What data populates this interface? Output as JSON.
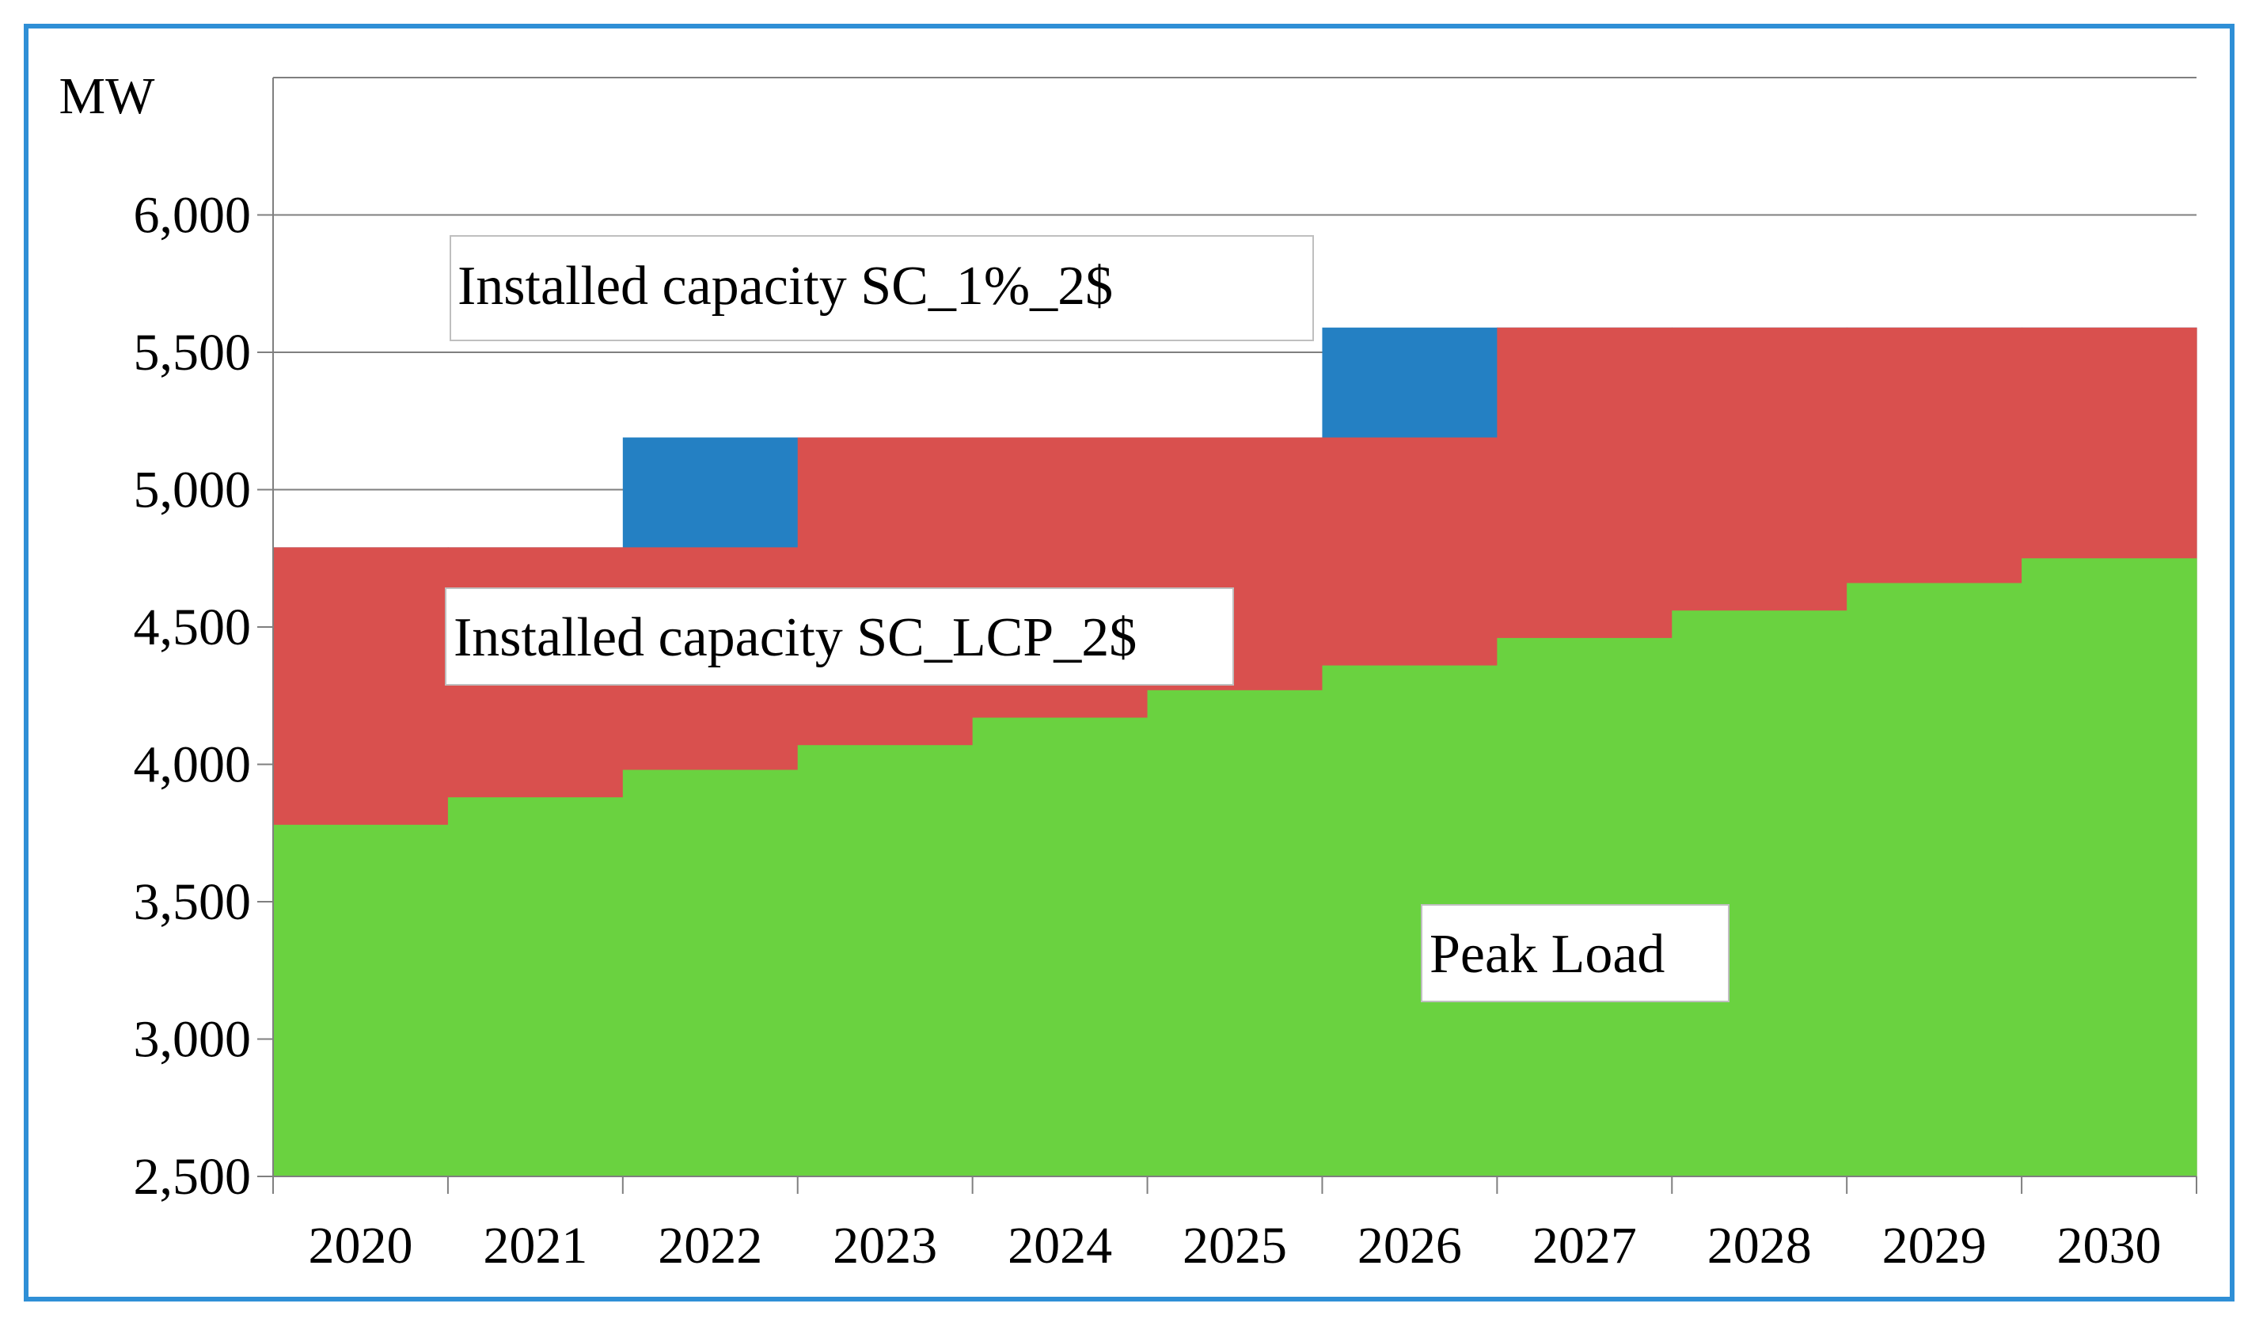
{
  "chart_data": {
    "type": "area",
    "title": "",
    "unit_label": "MW",
    "xlabel": "",
    "ylabel": "MW",
    "ylim": [
      2500,
      6500
    ],
    "y_ticks": [
      2500,
      3000,
      3500,
      4000,
      4500,
      5000,
      5500,
      6000
    ],
    "y_tick_labels": [
      "2,500",
      "3,000",
      "3,500",
      "4,000",
      "4,500",
      "5,000",
      "5,500",
      "6,000"
    ],
    "categories": [
      "2020",
      "2021",
      "2022",
      "2023",
      "2024",
      "2025",
      "2026",
      "2027",
      "2028",
      "2029",
      "2030"
    ],
    "series": [
      {
        "name": "Peak Load",
        "color": "#6ad240",
        "values": [
          3780,
          3880,
          3980,
          4070,
          4170,
          4270,
          4360,
          4460,
          4560,
          4660,
          4750
        ]
      },
      {
        "name": "Installed capacity SC_LCP_2$",
        "color": "#d9504e",
        "values": [
          4790,
          4790,
          4790,
          5190,
          5190,
          5190,
          5190,
          5590,
          5590,
          5590,
          5590
        ]
      },
      {
        "name": "Installed capacity SC_1%_2$",
        "color": "#2480c3",
        "values": [
          4790,
          4790,
          5190,
          5190,
          5190,
          5190,
          5590,
          5590,
          5590,
          5590,
          5590
        ]
      }
    ],
    "annotations": [
      {
        "text": "Installed capacity SC_1%_2$",
        "series": "Installed capacity SC_1%_2$"
      },
      {
        "text": "Installed capacity SC_LCP_2$",
        "series": "Installed capacity SC_LCP_2$"
      },
      {
        "text": "Peak Load",
        "series": "Peak Load"
      }
    ],
    "grid": true
  }
}
